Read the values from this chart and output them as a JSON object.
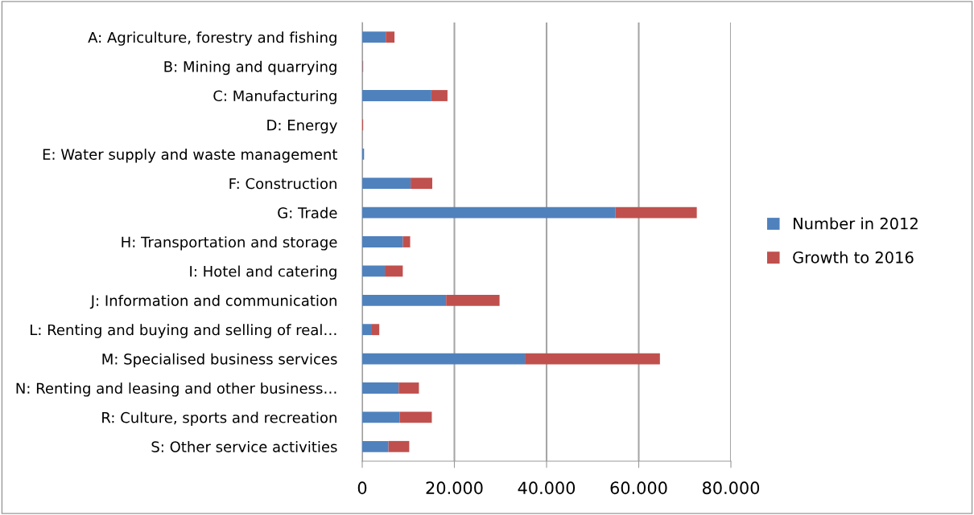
{
  "chart_data": {
    "type": "bar",
    "orientation": "horizontal",
    "stacked": true,
    "categories": [
      "A: Agriculture, forestry and fishing",
      "B: Mining and quarrying",
      "C: Manufacturing",
      "D: Energy",
      "E: Water supply and waste management",
      "F: Construction",
      "G: Trade",
      "H: Transportation and storage",
      "I: Hotel and catering",
      "J: Information and communication",
      "L: Renting and buying and selling of real…",
      "M: Specialised business services",
      "N: Renting and leasing and other business…",
      "R: Culture, sports and recreation",
      "S: Other service activities"
    ],
    "series": [
      {
        "name": "Number in 2012",
        "color": "#4f81bd",
        "values": [
          5100,
          100,
          15000,
          null,
          400,
          10500,
          54900,
          8800,
          4900,
          18200,
          2100,
          35300,
          7900,
          8100,
          5700
        ]
      },
      {
        "name": "Growth to 2016",
        "color": "#c0504d",
        "values": [
          1900,
          100,
          3500,
          200,
          0,
          4700,
          17700,
          1600,
          3900,
          11600,
          1600,
          29300,
          4400,
          7000,
          4500
        ]
      }
    ],
    "xlim": [
      0,
      80000
    ],
    "xticks": [
      0,
      {
        "value": 20000,
        "label": "20.000"
      },
      {
        "value": 40000,
        "label": "40.000"
      },
      {
        "value": 60000,
        "label": "60.000"
      },
      {
        "value": 80000,
        "label": "80.000"
      }
    ],
    "grid": "x",
    "legend": "right"
  }
}
